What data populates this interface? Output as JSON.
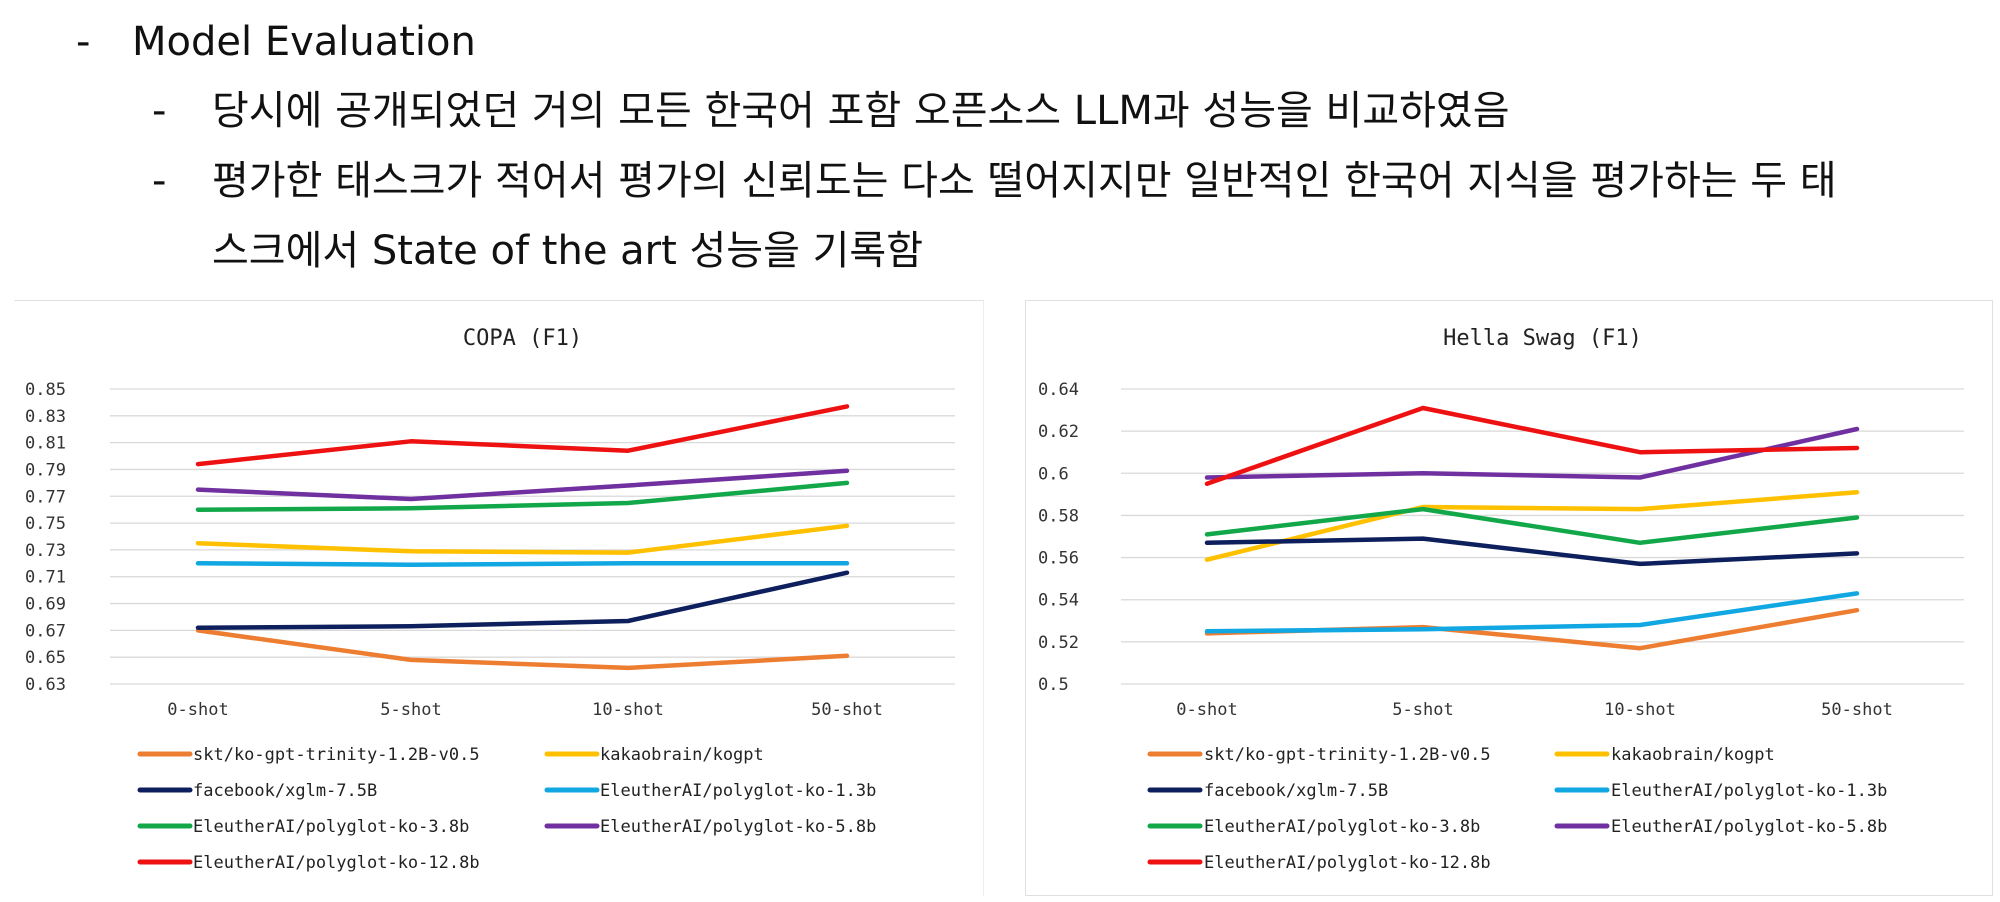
{
  "slide": {
    "bullet_dash": "-",
    "heading": "Model Evaluation",
    "sub_bullets": [
      "당시에 공개되었던 거의 모든 한국어 포함 오픈소스 LLM과 성능을 비교하였음",
      "평가한 태스크가 적어서 평가의 신뢰도는 다소 떨어지지만 일반적인 한국어 지식을 평가하는 두 태",
      "스크에서 State of the art 성능을 기록함"
    ]
  },
  "colors": {
    "skt": "#ED7D31",
    "kakao": "#FFC000",
    "facebook": "#0D1F5C",
    "polyglot13": "#11A7E2",
    "polyglot38": "#12A84A",
    "polyglot58": "#7030A0",
    "polyglot128": "#EE1111"
  },
  "chart_data": [
    {
      "type": "line",
      "title": "COPA (F1)",
      "categories": [
        "0-shot",
        "5-shot",
        "10-shot",
        "50-shot"
      ],
      "y_ticks": [
        "0.85",
        "0.83",
        "0.81",
        "0.79",
        "0.77",
        "0.75",
        "0.73",
        "0.71",
        "0.69",
        "0.67",
        "0.65",
        "0.63"
      ],
      "ylim": [
        0.63,
        0.85
      ],
      "grid": true,
      "legend_position": "bottom",
      "series": [
        {
          "name": "skt/ko-gpt-trinity-1.2B-v0.5",
          "color_key": "skt",
          "values": [
            0.67,
            0.648,
            0.642,
            0.651
          ]
        },
        {
          "name": "kakaobrain/kogpt",
          "color_key": "kakao",
          "values": [
            0.735,
            0.729,
            0.728,
            0.748
          ]
        },
        {
          "name": "facebook/xglm-7.5B",
          "color_key": "facebook",
          "values": [
            0.672,
            0.673,
            0.677,
            0.713
          ]
        },
        {
          "name": "EleutherAI/polyglot-ko-1.3b",
          "color_key": "polyglot13",
          "values": [
            0.72,
            0.719,
            0.72,
            0.72
          ]
        },
        {
          "name": "EleutherAI/polyglot-ko-3.8b",
          "color_key": "polyglot38",
          "values": [
            0.76,
            0.761,
            0.765,
            0.78
          ]
        },
        {
          "name": "EleutherAI/polyglot-ko-5.8b",
          "color_key": "polyglot58",
          "values": [
            0.775,
            0.768,
            0.778,
            0.789
          ]
        },
        {
          "name": "EleutherAI/polyglot-ko-12.8b",
          "color_key": "polyglot128",
          "values": [
            0.794,
            0.811,
            0.804,
            0.837
          ]
        }
      ]
    },
    {
      "type": "line",
      "title": "Hella Swag (F1)",
      "categories": [
        "0-shot",
        "5-shot",
        "10-shot",
        "50-shot"
      ],
      "y_ticks": [
        "0.64",
        "0.62",
        "0.6",
        "0.58",
        "0.56",
        "0.54",
        "0.52",
        "0.5"
      ],
      "ylim": [
        0.5,
        0.64
      ],
      "grid": true,
      "legend_position": "bottom",
      "series": [
        {
          "name": "skt/ko-gpt-trinity-1.2B-v0.5",
          "color_key": "skt",
          "values": [
            0.524,
            0.527,
            0.517,
            0.535
          ]
        },
        {
          "name": "kakaobrain/kogpt",
          "color_key": "kakao",
          "values": [
            0.559,
            0.584,
            0.583,
            0.591
          ]
        },
        {
          "name": "facebook/xglm-7.5B",
          "color_key": "facebook",
          "values": [
            0.567,
            0.569,
            0.557,
            0.562
          ]
        },
        {
          "name": "EleutherAI/polyglot-ko-1.3b",
          "color_key": "polyglot13",
          "values": [
            0.525,
            0.526,
            0.528,
            0.543
          ]
        },
        {
          "name": "EleutherAI/polyglot-ko-3.8b",
          "color_key": "polyglot38",
          "values": [
            0.571,
            0.583,
            0.567,
            0.579
          ]
        },
        {
          "name": "EleutherAI/polyglot-ko-5.8b",
          "color_key": "polyglot58",
          "values": [
            0.598,
            0.6,
            0.598,
            0.621
          ]
        },
        {
          "name": "EleutherAI/polyglot-ko-12.8b",
          "color_key": "polyglot128",
          "values": [
            0.595,
            0.631,
            0.61,
            0.612
          ]
        }
      ]
    }
  ]
}
